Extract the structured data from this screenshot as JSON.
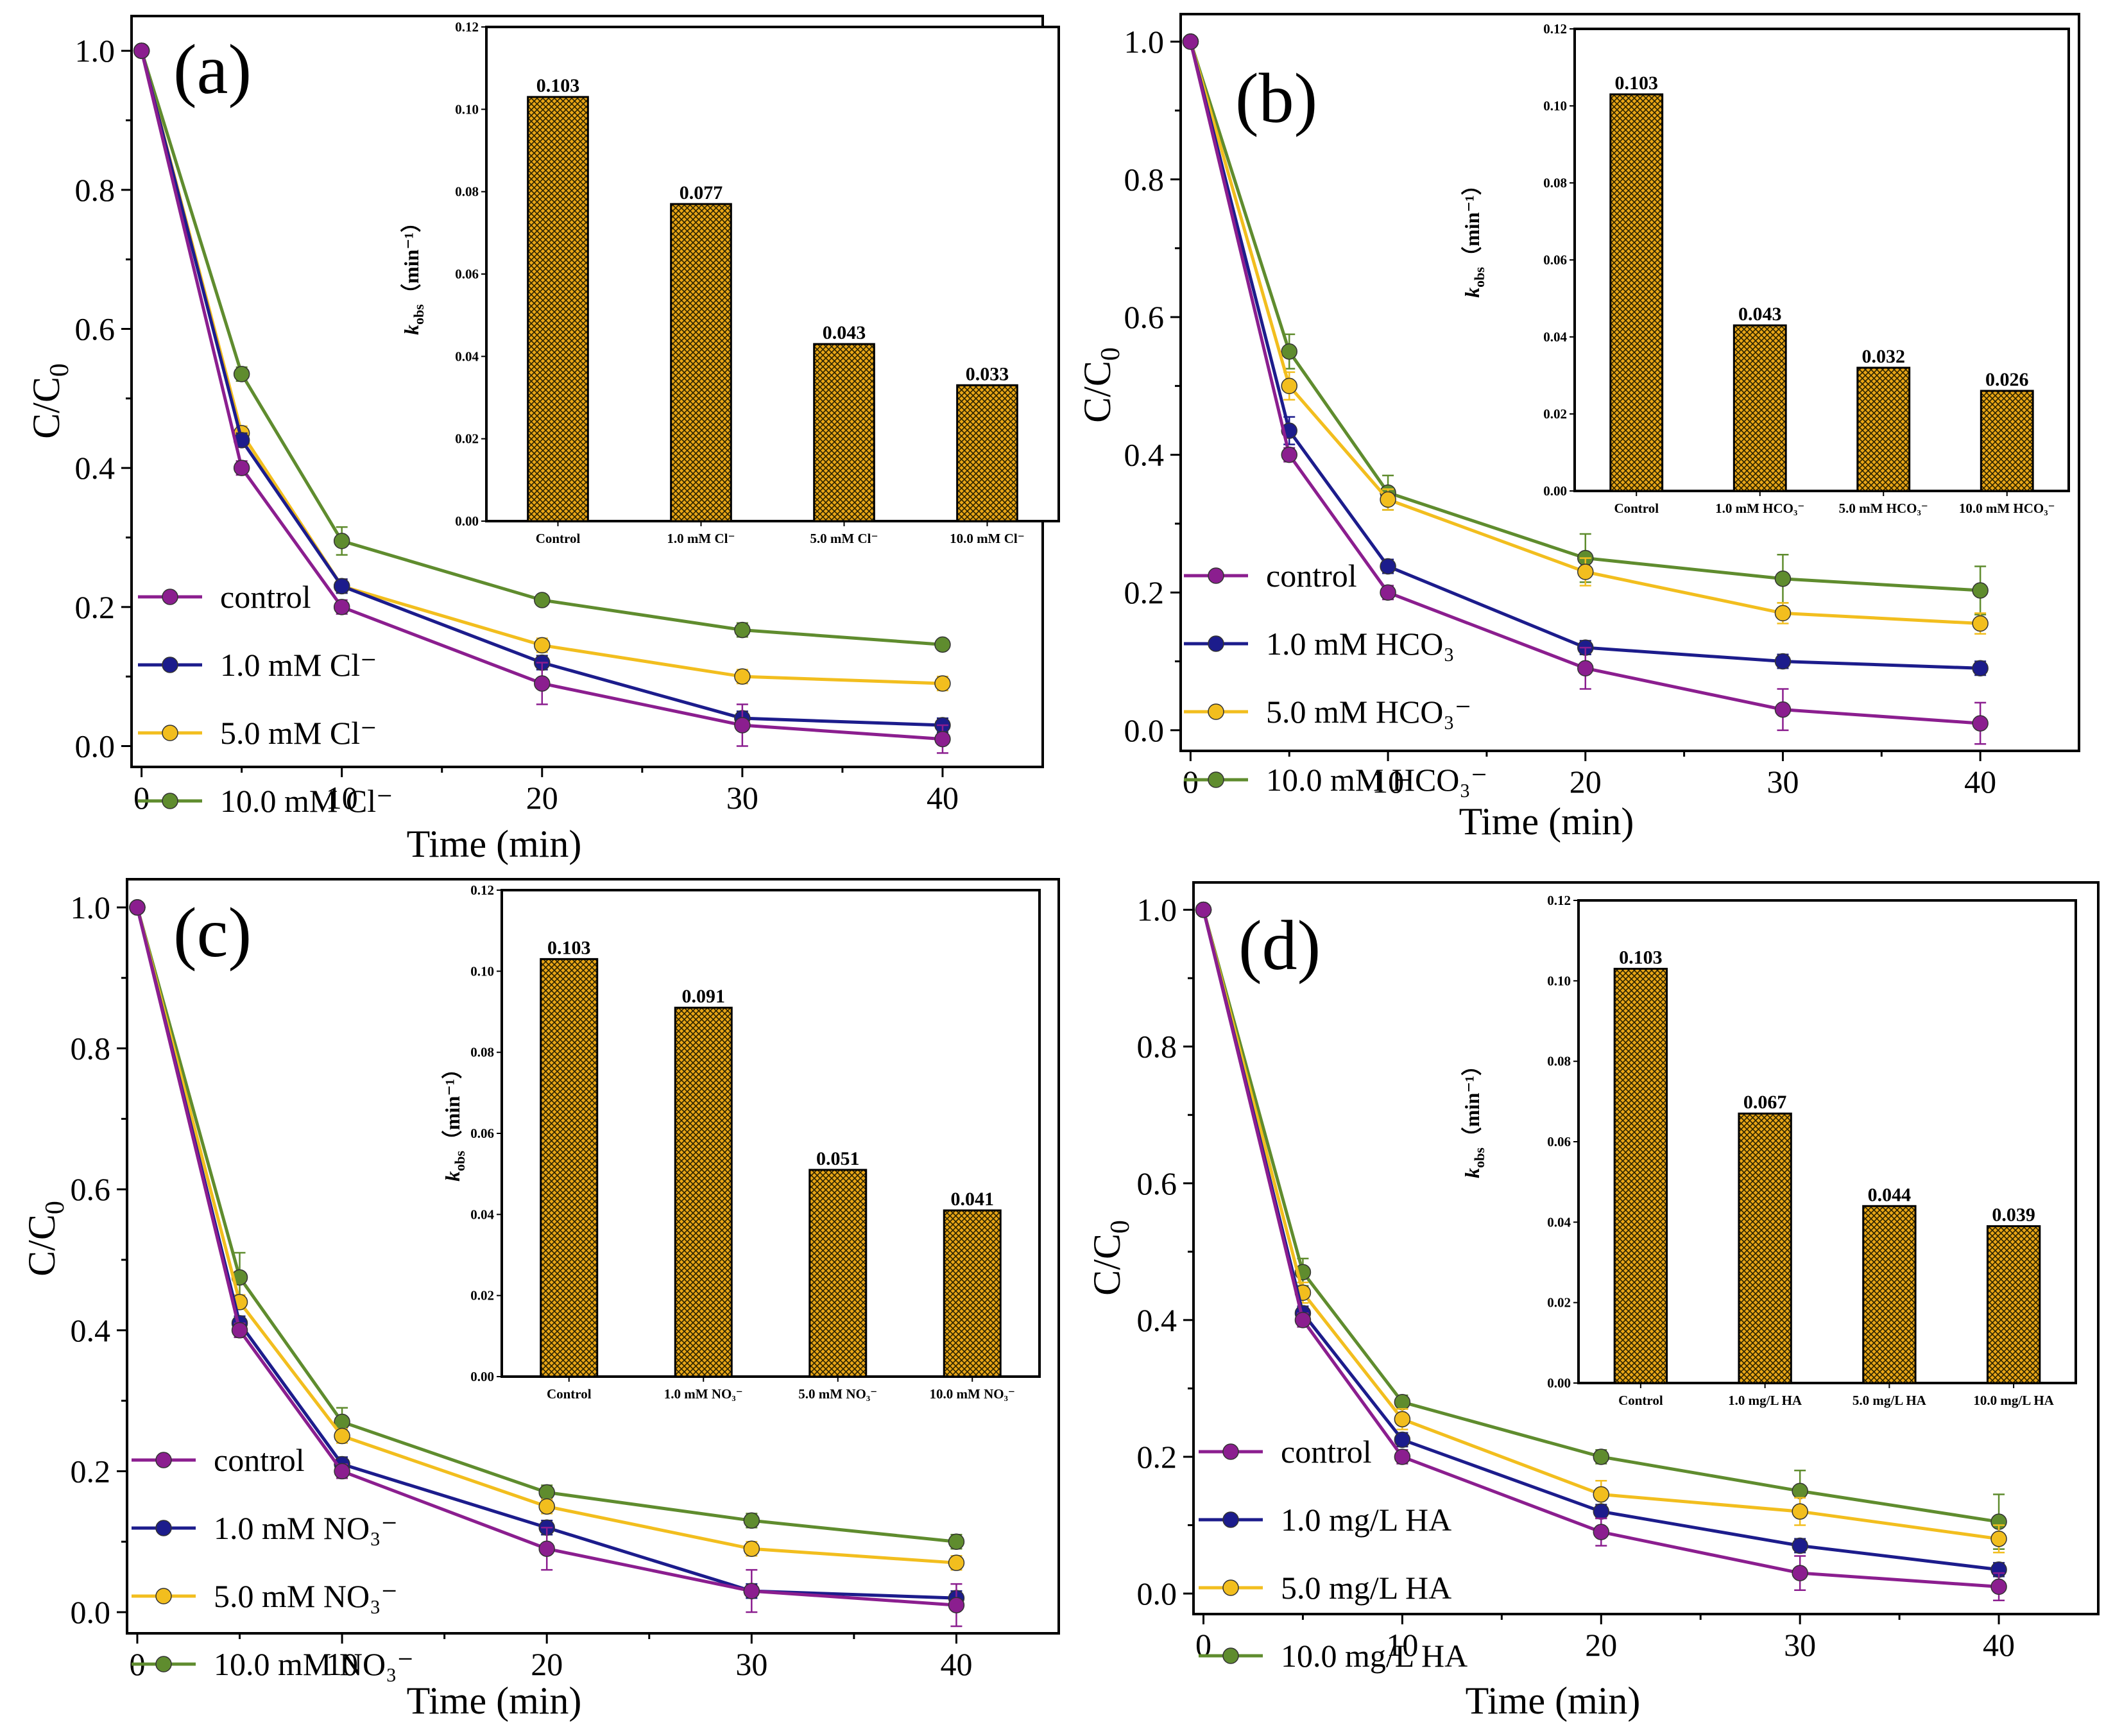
{
  "figure": {
    "colors": {
      "control": "#8B1E8F",
      "series1": "#1C1C8C",
      "series2": "#F2BE1E",
      "series3": "#5F8C2E",
      "bar_fill": "#E8A516",
      "bar_hatch": "#2a2200"
    },
    "icons": [
      "legend-line-marker-icon"
    ]
  },
  "chart_data": [
    {
      "type": "line",
      "panel_label": "(a)",
      "xlabel": "Time (min)",
      "ylabel": "C/C",
      "ylabel_sub": "0",
      "xlim": [
        -0.5,
        45
      ],
      "ylim": [
        -0.03,
        1.05
      ],
      "xticks": [
        0,
        10,
        20,
        30,
        40
      ],
      "yticks": [
        0.0,
        0.2,
        0.4,
        0.6,
        0.8,
        1.0
      ],
      "ytick_labels": [
        "0.0",
        "0.2",
        "0.4",
        "0.6",
        "0.8",
        "1.0"
      ],
      "x": [
        0,
        5,
        10,
        20,
        30,
        40
      ],
      "series": [
        {
          "name": "control",
          "color_key": "control",
          "values": [
            1.0,
            0.4,
            0.2,
            0.09,
            0.03,
            0.01
          ],
          "errors": [
            0,
            0.01,
            0.01,
            0.03,
            0.03,
            0.02
          ]
        },
        {
          "name": "1.0 mM Cl⁻",
          "color_key": "series1",
          "values": [
            1.0,
            0.44,
            0.23,
            0.12,
            0.04,
            0.03
          ],
          "errors": [
            0,
            0.01,
            0.01,
            0.01,
            0.01,
            0.01
          ]
        },
        {
          "name": "5.0 mM Cl⁻",
          "color_key": "series2",
          "values": [
            1.0,
            0.45,
            0.23,
            0.145,
            0.1,
            0.09
          ],
          "errors": [
            0,
            0.01,
            0.01,
            0.01,
            0.01,
            0.01
          ]
        },
        {
          "name": "10.0 mM Cl⁻",
          "color_key": "series3",
          "values": [
            1.0,
            0.535,
            0.295,
            0.21,
            0.167,
            0.146
          ],
          "errors": [
            0,
            0.01,
            0.02,
            0.005,
            0.01,
            0.005
          ]
        }
      ],
      "inset": {
        "type": "bar",
        "ylabel": "k",
        "ylabel_sub": "obs",
        "ylabel_unit": "（min⁻¹）",
        "ylim": [
          0,
          0.12
        ],
        "yticks": [
          0.0,
          0.02,
          0.04,
          0.06,
          0.08,
          0.1,
          0.12
        ],
        "ytick_labels": [
          "0.00",
          "0.02",
          "0.04",
          "0.06",
          "0.08",
          "0.10",
          "0.12"
        ],
        "categories": [
          "Control",
          "1.0 mM Cl⁻",
          "5.0 mM Cl⁻",
          "10.0 mM Cl⁻"
        ],
        "values": [
          0.103,
          0.077,
          0.043,
          0.033
        ],
        "value_labels": [
          "0.103",
          "0.077",
          "0.043",
          "0.033"
        ]
      }
    },
    {
      "type": "line",
      "panel_label": "(b)",
      "xlabel": "Time (min)",
      "ylabel": "C/C",
      "ylabel_sub": "0",
      "xlim": [
        -0.5,
        45
      ],
      "ylim": [
        -0.03,
        1.04
      ],
      "xticks": [
        0,
        10,
        20,
        30,
        40
      ],
      "yticks": [
        0.0,
        0.2,
        0.4,
        0.6,
        0.8,
        1.0
      ],
      "ytick_labels": [
        "0.0",
        "0.2",
        "0.4",
        "0.6",
        "0.8",
        "1.0"
      ],
      "x": [
        0,
        5,
        10,
        20,
        30,
        40
      ],
      "series": [
        {
          "name": "control",
          "color_key": "control",
          "values": [
            1.0,
            0.4,
            0.2,
            0.09,
            0.03,
            0.01
          ],
          "errors": [
            0,
            0.01,
            0.01,
            0.03,
            0.03,
            0.03
          ]
        },
        {
          "name": "1.0 mM HCO₃",
          "color_key": "series1",
          "values": [
            1.0,
            0.435,
            0.238,
            0.12,
            0.1,
            0.09
          ],
          "errors": [
            0,
            0.02,
            0.01,
            0.01,
            0.01,
            0.01
          ]
        },
        {
          "name": "5.0 mM HCO₃⁻",
          "color_key": "series2",
          "values": [
            1.0,
            0.5,
            0.335,
            0.23,
            0.17,
            0.155
          ],
          "errors": [
            0,
            0.02,
            0.015,
            0.02,
            0.015,
            0.015
          ]
        },
        {
          "name": "10.0 mM HCO₃⁻",
          "color_key": "series3",
          "values": [
            1.0,
            0.55,
            0.345,
            0.25,
            0.22,
            0.203
          ],
          "errors": [
            0,
            0.025,
            0.025,
            0.035,
            0.035,
            0.035
          ]
        }
      ],
      "inset": {
        "type": "bar",
        "ylabel": "k",
        "ylabel_sub": "obs",
        "ylabel_unit": "（min⁻¹）",
        "ylim": [
          0,
          0.12
        ],
        "yticks": [
          0.0,
          0.02,
          0.04,
          0.06,
          0.08,
          0.1,
          0.12
        ],
        "ytick_labels": [
          "0.00",
          "0.02",
          "0.04",
          "0.06",
          "0.08",
          "0.10",
          "0.12"
        ],
        "categories": [
          "Control",
          "1.0 mM HCO₃⁻",
          "5.0 mM HCO₃⁻",
          "10.0 mM HCO₃⁻"
        ],
        "values": [
          0.103,
          0.043,
          0.032,
          0.026
        ],
        "value_labels": [
          "0.103",
          "0.043",
          "0.032",
          "0.026"
        ]
      }
    },
    {
      "type": "line",
      "panel_label": "(c)",
      "xlabel": "Time (min)",
      "ylabel": "C/C",
      "ylabel_sub": "0",
      "xlim": [
        -0.5,
        45
      ],
      "ylim": [
        -0.03,
        1.04
      ],
      "xticks": [
        0,
        10,
        20,
        30,
        40
      ],
      "yticks": [
        0.0,
        0.2,
        0.4,
        0.6,
        0.8,
        1.0
      ],
      "ytick_labels": [
        "0.0",
        "0.2",
        "0.4",
        "0.6",
        "0.8",
        "1.0"
      ],
      "x": [
        0,
        5,
        10,
        20,
        30,
        40
      ],
      "series": [
        {
          "name": "control",
          "color_key": "control",
          "values": [
            1.0,
            0.4,
            0.2,
            0.09,
            0.03,
            0.01
          ],
          "errors": [
            0,
            0.01,
            0.01,
            0.03,
            0.03,
            0.03
          ]
        },
        {
          "name": "1.0 mM NO₃⁻",
          "color_key": "series1",
          "values": [
            1.0,
            0.41,
            0.21,
            0.12,
            0.03,
            0.02
          ],
          "errors": [
            0,
            0.01,
            0.01,
            0.01,
            0.01,
            0.01
          ]
        },
        {
          "name": "5.0 mM NO₃⁻",
          "color_key": "series2",
          "values": [
            1.0,
            0.44,
            0.25,
            0.15,
            0.09,
            0.07
          ],
          "errors": [
            0,
            0.01,
            0.01,
            0.01,
            0.01,
            0.01
          ]
        },
        {
          "name": "10.0 mM NO₃⁻",
          "color_key": "series3",
          "values": [
            1.0,
            0.475,
            0.27,
            0.17,
            0.13,
            0.1
          ],
          "errors": [
            0,
            0.035,
            0.02,
            0.01,
            0.01,
            0.01
          ]
        }
      ],
      "inset": {
        "type": "bar",
        "ylabel": "k",
        "ylabel_sub": "obs",
        "ylabel_unit": "（min⁻¹）",
        "ylim": [
          0,
          0.12
        ],
        "yticks": [
          0.0,
          0.02,
          0.04,
          0.06,
          0.08,
          0.1,
          0.12
        ],
        "ytick_labels": [
          "0.00",
          "0.02",
          "0.04",
          "0.06",
          "0.08",
          "0.10",
          "0.12"
        ],
        "categories": [
          "Control",
          "1.0 mM NO₃⁻",
          "5.0 mM NO₃⁻",
          "10.0 mM NO₃⁻"
        ],
        "values": [
          0.103,
          0.091,
          0.051,
          0.041
        ],
        "value_labels": [
          "0.103",
          "0.091",
          "0.051",
          "0.041"
        ]
      }
    },
    {
      "type": "line",
      "panel_label": "(d)",
      "xlabel": "Time (min)",
      "ylabel": "C/C",
      "ylabel_sub": "0",
      "xlim": [
        -0.5,
        45
      ],
      "ylim": [
        -0.03,
        1.04
      ],
      "xticks": [
        0,
        10,
        20,
        30,
        40
      ],
      "yticks": [
        0.0,
        0.2,
        0.4,
        0.6,
        0.8,
        1.0
      ],
      "ytick_labels": [
        "0.0",
        "0.2",
        "0.4",
        "0.6",
        "0.8",
        "1.0"
      ],
      "x": [
        0,
        5,
        10,
        20,
        30,
        40
      ],
      "series": [
        {
          "name": "control",
          "color_key": "control",
          "values": [
            1.0,
            0.4,
            0.2,
            0.09,
            0.03,
            0.01
          ],
          "errors": [
            0,
            0.01,
            0.01,
            0.02,
            0.025,
            0.02
          ]
        },
        {
          "name": "1.0 mg/L HA",
          "color_key": "series1",
          "values": [
            1.0,
            0.41,
            0.225,
            0.12,
            0.07,
            0.035
          ],
          "errors": [
            0,
            0.01,
            0.01,
            0.01,
            0.01,
            0.01
          ]
        },
        {
          "name": "5.0 mg/L HA",
          "color_key": "series2",
          "values": [
            1.0,
            0.44,
            0.255,
            0.145,
            0.12,
            0.08
          ],
          "errors": [
            0,
            0.015,
            0.015,
            0.02,
            0.02,
            0.02
          ]
        },
        {
          "name": "10.0 mg/L HA",
          "color_key": "series3",
          "values": [
            1.0,
            0.47,
            0.28,
            0.2,
            0.15,
            0.105
          ],
          "errors": [
            0,
            0.02,
            0.01,
            0.01,
            0.03,
            0.04
          ]
        }
      ],
      "inset": {
        "type": "bar",
        "ylabel": "k",
        "ylabel_sub": "obs",
        "ylabel_unit": "（min⁻¹）",
        "ylim": [
          0,
          0.12
        ],
        "yticks": [
          0.0,
          0.02,
          0.04,
          0.06,
          0.08,
          0.1,
          0.12
        ],
        "ytick_labels": [
          "0.00",
          "0.02",
          "0.04",
          "0.06",
          "0.08",
          "0.10",
          "0.12"
        ],
        "categories": [
          "Control",
          "1.0 mg/L HA",
          "5.0 mg/L HA",
          "10.0 mg/L HA"
        ],
        "values": [
          0.103,
          0.067,
          0.044,
          0.039
        ],
        "value_labels": [
          "0.103",
          "0.067",
          "0.044",
          "0.039"
        ]
      }
    }
  ]
}
